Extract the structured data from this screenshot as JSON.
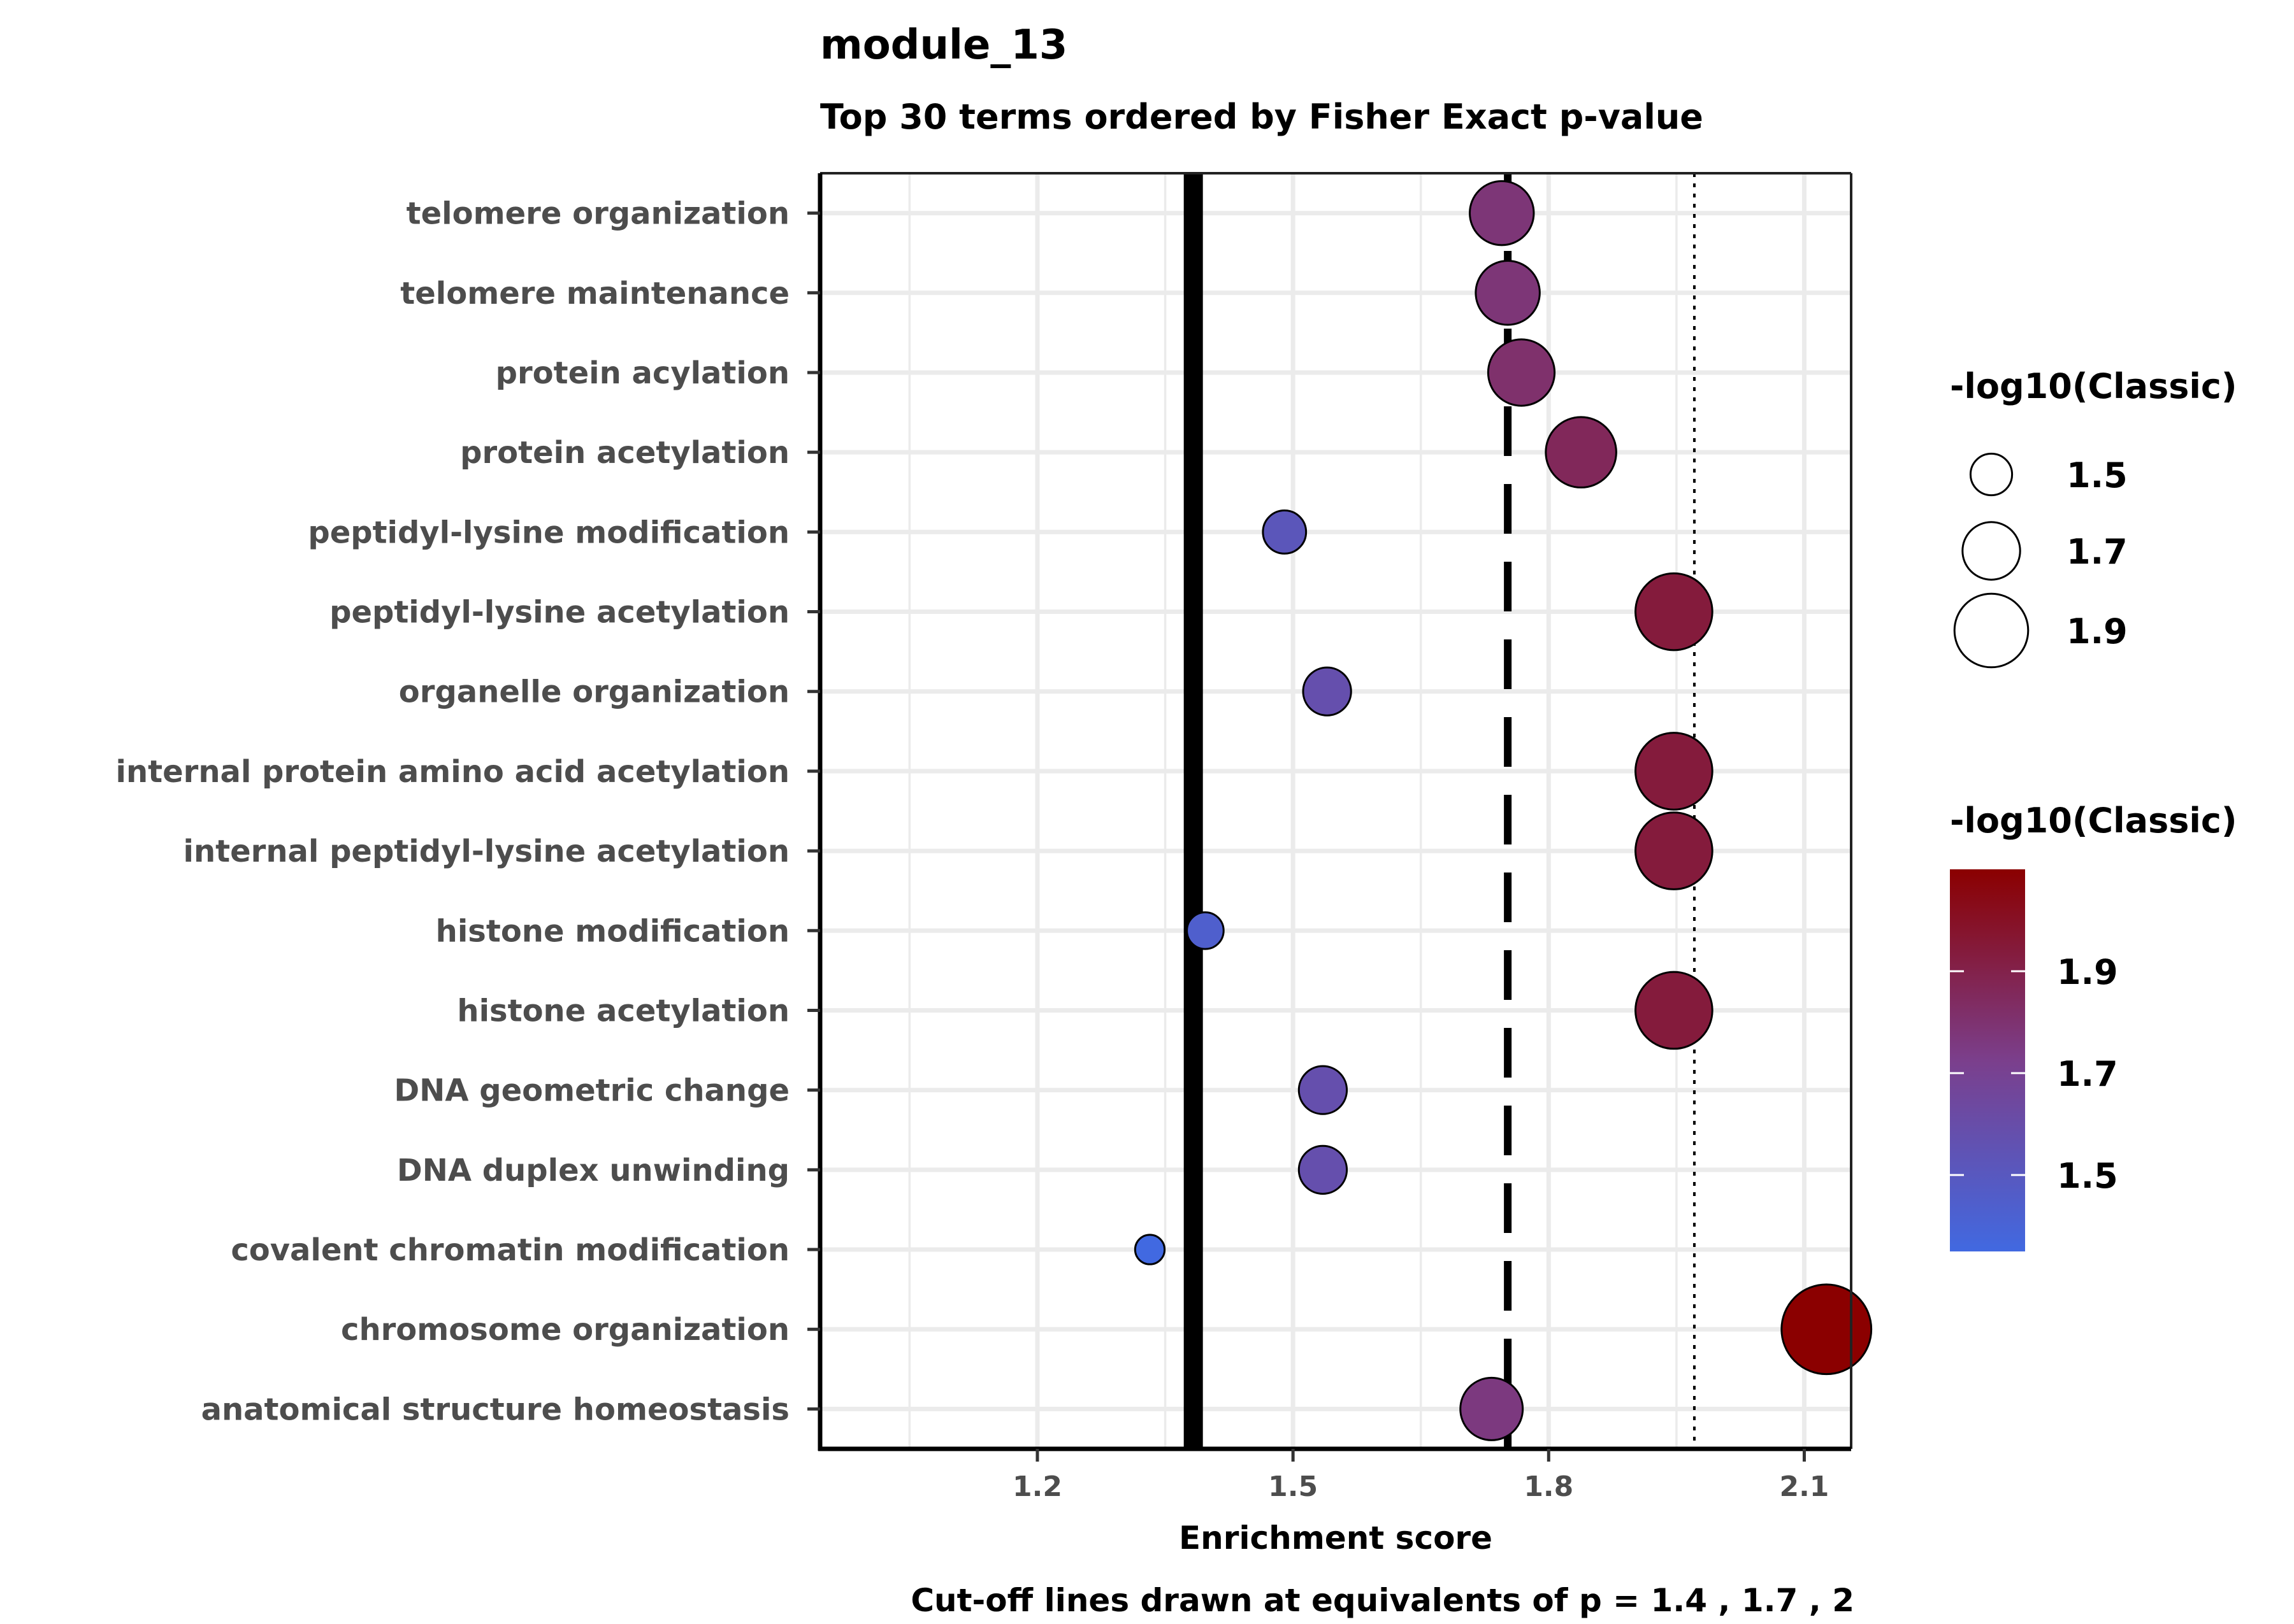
{
  "chart_data": {
    "type": "scatter",
    "title": "module_13",
    "subtitle": "Top 30 terms ordered by Fisher Exact p-value",
    "xlabel": "Enrichment score",
    "caption": "Cut-off lines drawn at equivalents of p = 1.4 , 1.7 , 2",
    "xlim": [
      0.945,
      2.155
    ],
    "xticks": [
      1.2,
      1.5,
      1.8,
      2.1
    ],
    "xtick_labels": [
      "1.2",
      "1.5",
      "1.8",
      "2.1"
    ],
    "grid": true,
    "cutoff_lines": [
      {
        "x": 1.383,
        "style": "solid"
      },
      {
        "x": 1.752,
        "style": "dashed"
      },
      {
        "x": 1.971,
        "style": "dotted"
      }
    ],
    "points": [
      {
        "term": "telomere organization",
        "x": 1.745,
        "size": 1.78,
        "color": 1.78
      },
      {
        "term": "telomere maintenance",
        "x": 1.752,
        "size": 1.78,
        "color": 1.78
      },
      {
        "term": "protein acylation",
        "x": 1.768,
        "size": 1.81,
        "color": 1.81
      },
      {
        "term": "protein acetylation",
        "x": 1.838,
        "size": 1.86,
        "color": 1.86
      },
      {
        "term": "peptidyl-lysine modification",
        "x": 1.49,
        "size": 1.52,
        "color": 1.52
      },
      {
        "term": "peptidyl-lysine acetylation",
        "x": 1.947,
        "size": 1.94,
        "color": 1.94
      },
      {
        "term": "organelle organization",
        "x": 1.54,
        "size": 1.58,
        "color": 1.58
      },
      {
        "term": "internal protein amino acid acetylation",
        "x": 1.947,
        "size": 1.94,
        "color": 1.94
      },
      {
        "term": "internal peptidyl-lysine acetylation",
        "x": 1.947,
        "size": 1.94,
        "color": 1.94
      },
      {
        "term": "histone modification",
        "x": 1.397,
        "size": 1.44,
        "color": 1.44
      },
      {
        "term": "histone acetylation",
        "x": 1.947,
        "size": 1.94,
        "color": 1.94
      },
      {
        "term": "DNA geometric change",
        "x": 1.535,
        "size": 1.58,
        "color": 1.58
      },
      {
        "term": "DNA duplex unwinding",
        "x": 1.535,
        "size": 1.58,
        "color": 1.58
      },
      {
        "term": "covalent chromatin modification",
        "x": 1.332,
        "size": 1.35,
        "color": 1.35
      },
      {
        "term": "chromosome organization",
        "x": 2.126,
        "size": 2.1,
        "color": 2.1
      },
      {
        "term": "anatomical structure homeostasis",
        "x": 1.733,
        "size": 1.76,
        "color": 1.76
      }
    ],
    "size_legend": {
      "title": "-log10(Classic)",
      "values": [
        1.5,
        1.7,
        1.9
      ],
      "labels": [
        "1.5",
        "1.7",
        "1.9"
      ]
    },
    "color_legend": {
      "title": "-log10(Classic)",
      "range": [
        1.35,
        2.1
      ],
      "ticks": [
        1.5,
        1.7,
        1.9
      ],
      "labels": [
        "1.5",
        "1.7",
        "1.9"
      ],
      "low_color": "#4169e1",
      "mid_color": "#7b3f8c",
      "high_color": "#8b0000"
    }
  }
}
